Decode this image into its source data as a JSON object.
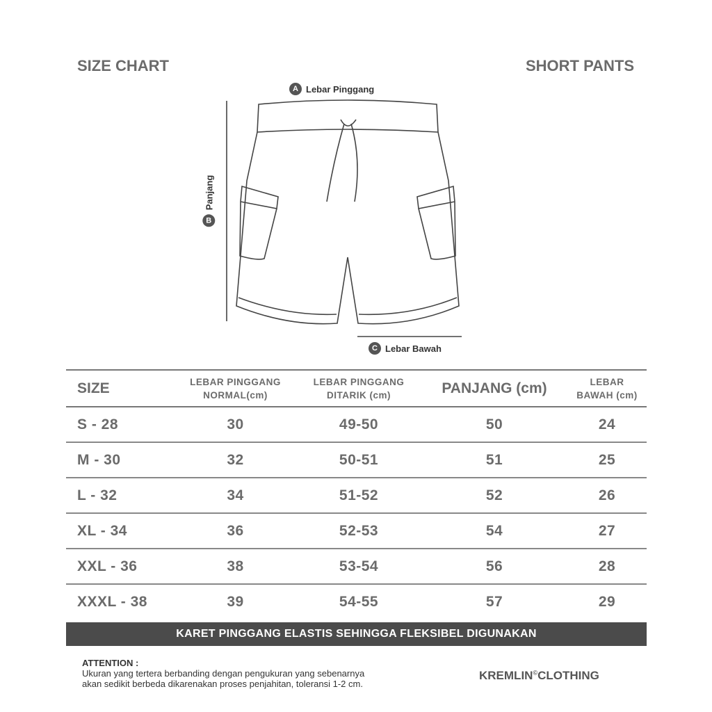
{
  "header": {
    "left_title": "SIZE CHART",
    "right_title": "SHORT PANTS"
  },
  "diagram": {
    "label_a": {
      "letter": "A",
      "text": "Lebar Pinggang"
    },
    "label_b": {
      "letter": "B",
      "text": "Panjang"
    },
    "label_c": {
      "letter": "C",
      "text": "Lebar Bawah"
    }
  },
  "table": {
    "headers": [
      "SIZE",
      "LEBAR PINGGANG NORMAL(cm)",
      "LEBAR PINGGANG DITARIK (cm)",
      "PANJANG (cm)",
      "LEBAR BAWAH (cm)"
    ],
    "header_lines": {
      "h1a": "LEBAR PINGGANG",
      "h1b": "NORMAL(cm)",
      "h2a": "LEBAR PINGGANG",
      "h2b": "DITARIK (cm)",
      "h4a": "LEBAR",
      "h4b": "BAWAH (cm)"
    },
    "rows": [
      [
        "S - 28",
        "30",
        "49-50",
        "50",
        "24"
      ],
      [
        "M - 30",
        "32",
        "50-51",
        "51",
        "25"
      ],
      [
        "L - 32",
        "34",
        "51-52",
        "52",
        "26"
      ],
      [
        "XL - 34",
        "36",
        "52-53",
        "54",
        "27"
      ],
      [
        "XXL - 36",
        "38",
        "53-54",
        "56",
        "28"
      ],
      [
        "XXXL - 38",
        "39",
        "54-55",
        "57",
        "29"
      ]
    ]
  },
  "banner": "KARET PINGGANG ELASTIS SEHINGGA FLEKSIBEL DIGUNAKAN",
  "attention": {
    "title": "ATTENTION :",
    "line1": "Ukuran yang tertera berbanding dengan pengukuran yang sebenarnya",
    "line2": "akan sedikit berbeda dikarenakan proses penjahitan, toleransi 1-2 cm."
  },
  "brand": {
    "name1": "KREMLIN",
    "mark": "©",
    "name2": "CLOTHING"
  },
  "colors": {
    "text": "#6b6b6b",
    "banner": "#4b4b4b"
  }
}
